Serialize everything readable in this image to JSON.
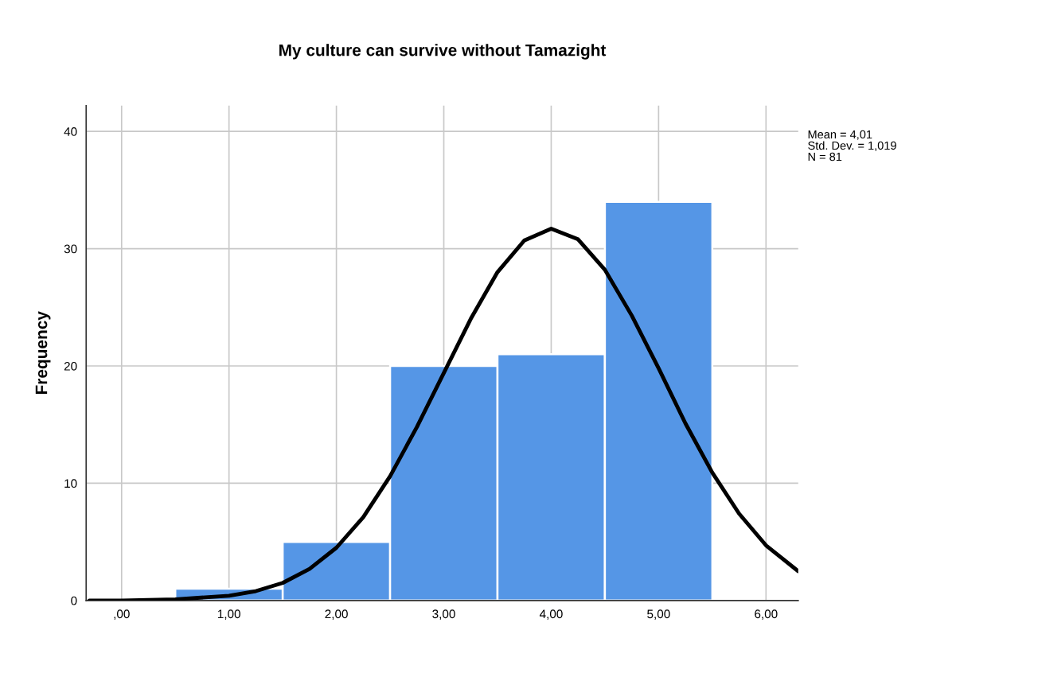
{
  "chart_data": {
    "type": "histogram",
    "title": "My culture can survive without Tamazight",
    "ylabel": "Frequency",
    "bins": [
      0.5,
      1.5,
      2.5,
      3.5,
      4.5,
      5.5
    ],
    "values": [
      1,
      5,
      20,
      21,
      34
    ],
    "color": "#5596e6",
    "series": [
      {
        "type": "line",
        "color": "#000000",
        "x": [
          -0.3,
          0,
          0.5,
          1,
          1.25,
          1.5,
          1.75,
          2,
          2.25,
          2.5,
          2.75,
          3,
          3.25,
          3.5,
          3.75,
          4,
          4.25,
          4.5,
          4.75,
          5,
          5.25,
          5.5,
          5.75,
          6,
          6.3
        ],
        "values": [
          0,
          0,
          0.1,
          0.4,
          0.8,
          1.5,
          2.7,
          4.5,
          7.1,
          10.6,
          14.8,
          19.4,
          24.0,
          28.0,
          30.7,
          31.7,
          30.8,
          28.2,
          24.3,
          19.8,
          15.1,
          10.9,
          7.4,
          4.7,
          2.5
        ]
      }
    ],
    "xlim": [
      -0.33,
      6.3
    ],
    "ylim": [
      0,
      42.2
    ],
    "xticks": [
      {
        "value": 0,
        "label": ",00"
      },
      {
        "value": 1,
        "label": "1,00"
      },
      {
        "value": 2,
        "label": "2,00"
      },
      {
        "value": 3,
        "label": "3,00"
      },
      {
        "value": 4,
        "label": "4,00"
      },
      {
        "value": 5,
        "label": "5,00"
      },
      {
        "value": 6,
        "label": "6,00"
      }
    ],
    "yticks": [
      0,
      10,
      20,
      30,
      40
    ],
    "grid": true,
    "legend": false,
    "annotations": [
      "Mean = 4,01",
      "Std. Dev. = 1,019",
      "N = 81"
    ]
  }
}
